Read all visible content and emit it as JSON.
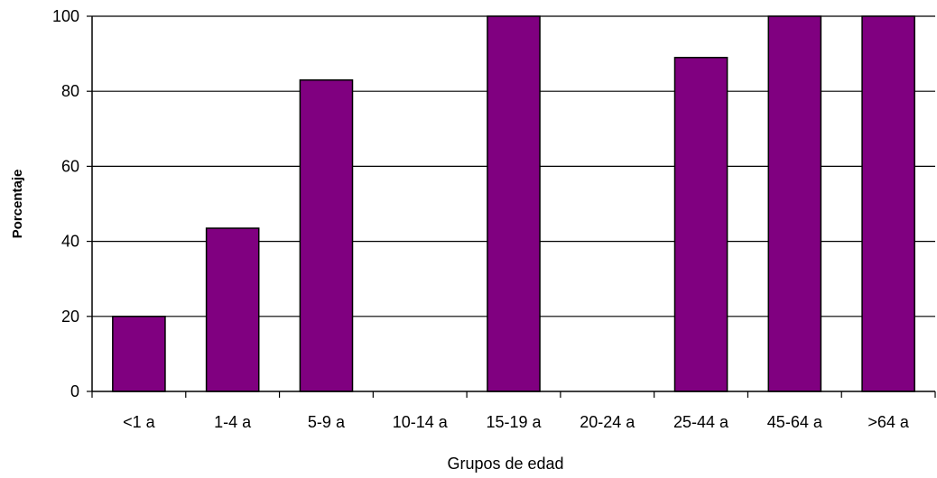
{
  "chart_data": {
    "type": "bar",
    "xlabel": "Grupos de edad",
    "ylabel": "Porcentaje",
    "categories": [
      "<1 a",
      "1-4 a",
      "5-9 a",
      "10-14 a",
      "15-19 a",
      "20-24 a",
      "25-44 a",
      "45-64 a",
      ">64 a"
    ],
    "values": [
      20,
      43.5,
      83,
      0,
      100,
      0,
      89,
      100,
      100
    ],
    "ylim": [
      0,
      100
    ],
    "yticks": [
      0,
      20,
      40,
      60,
      80,
      100
    ],
    "grid": true,
    "legend": "none",
    "colors": {
      "bar_fill": "#800080",
      "bar_stroke": "#000000",
      "grid": "#000000",
      "axis": "#000000"
    }
  }
}
